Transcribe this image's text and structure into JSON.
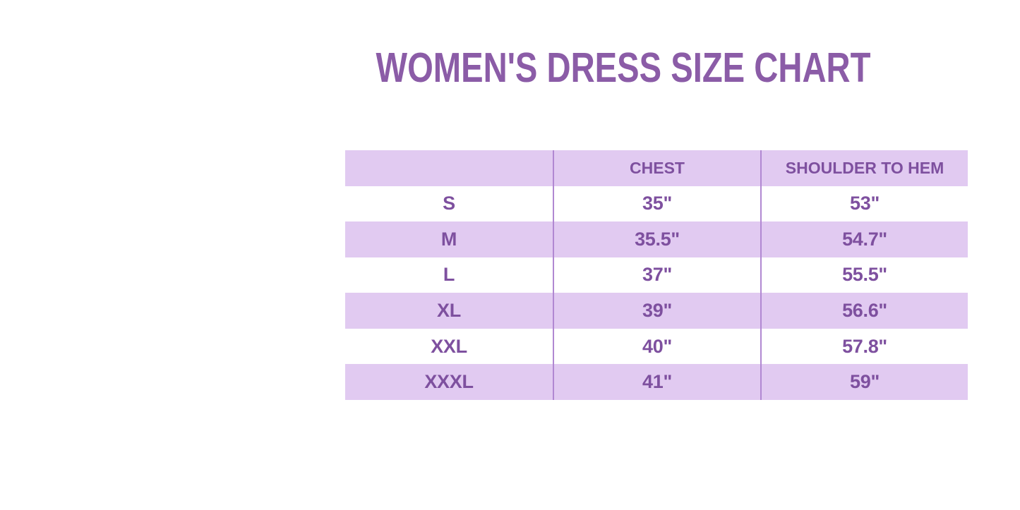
{
  "page": {
    "title": "WOMEN'S DRESS SIZE CHART"
  },
  "colors": {
    "title_text": "#8b5ca7",
    "table_text": "#7e509f",
    "row_fill": "#e1caf1",
    "row_alt_fill": "#ffffff",
    "column_divider": "#b188d2",
    "background": "#ffffff"
  },
  "chart_data": {
    "type": "table",
    "title": "WOMEN'S DRESS SIZE CHART",
    "columns": [
      "",
      "CHEST",
      "SHOULDER TO HEM"
    ],
    "rows": [
      {
        "size": "S",
        "chest": "35\"",
        "shoulder_to_hem": "53\""
      },
      {
        "size": "M",
        "chest": "35.5\"",
        "shoulder_to_hem": "54.7\""
      },
      {
        "size": "L",
        "chest": "37\"",
        "shoulder_to_hem": "55.5\""
      },
      {
        "size": "XL",
        "chest": "39\"",
        "shoulder_to_hem": "56.6\""
      },
      {
        "size": "XXL",
        "chest": "40\"",
        "shoulder_to_hem": "57.8\""
      },
      {
        "size": "XXXL",
        "chest": "41\"",
        "shoulder_to_hem": "59\""
      }
    ],
    "layout_hints": {
      "alternating_row_fill": true,
      "first_fill_row": "header",
      "outer_border": false,
      "horizontal_gridlines": false,
      "vertical_gridlines": true
    }
  }
}
